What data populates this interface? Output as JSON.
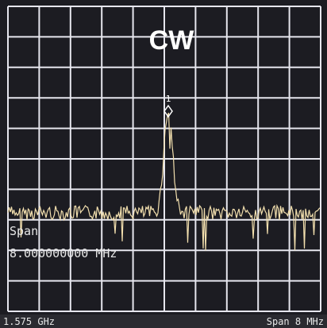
{
  "screen": {
    "title": "CW",
    "marker": "1",
    "readout": {
      "label": "Span",
      "value": "8.000000000 MHz"
    },
    "footer": {
      "center": "1.575 GHz",
      "span": "Span 8 MHz"
    }
  }
}
